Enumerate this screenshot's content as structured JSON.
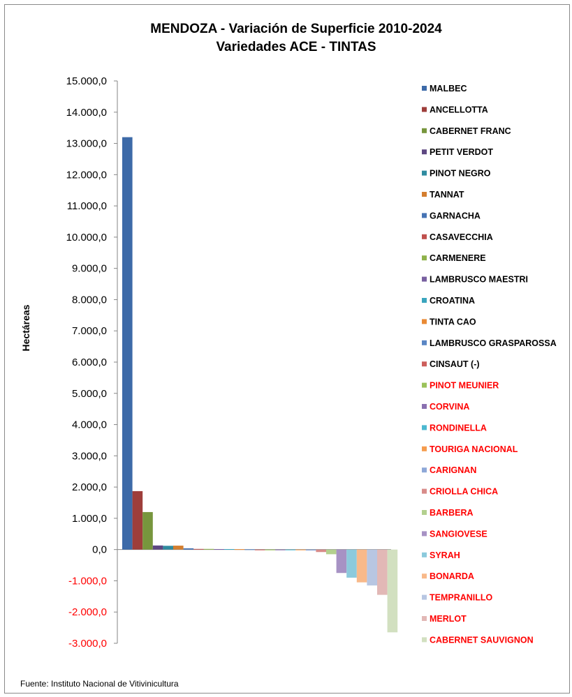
{
  "chart_data": {
    "type": "bar",
    "title": "MENDOZA - Variación de Superficie  2010-2024",
    "subtitle": "Variedades ACE - TINTAS",
    "ylabel": "Hectáreas",
    "xlabel": "",
    "ylim": [
      -3000,
      15000
    ],
    "yticks": [
      15000,
      14000,
      13000,
      12000,
      11000,
      10000,
      9000,
      8000,
      7000,
      6000,
      5000,
      4000,
      3000,
      2000,
      1000,
      0,
      -1000,
      -2000,
      -3000
    ],
    "ytick_labels": [
      "15.000,0",
      "14.000,0",
      "13.000,0",
      "12.000,0",
      "11.000,0",
      "10.000,0",
      "9.000,0",
      "8.000,0",
      "7.000,0",
      "6.000,0",
      "5.000,0",
      "4.000,0",
      "3.000,0",
      "2.000,0",
      "1.000,0",
      "0,0",
      "-1.000,0",
      "-2.000,0",
      "-3.000,0"
    ],
    "negative_tick_color": "#ff0000",
    "grid": false,
    "legend_position": "right",
    "series": [
      {
        "name": "MALBEC",
        "value": 13200,
        "color": "#3d6aa8",
        "label_color": "#000000"
      },
      {
        "name": "ANCELLOTTA",
        "value": 1870,
        "color": "#9e3e3b",
        "label_color": "#000000"
      },
      {
        "name": "CABERNET FRANC",
        "value": 1200,
        "color": "#77963d",
        "label_color": "#000000"
      },
      {
        "name": "PETIT VERDOT",
        "value": 130,
        "color": "#5e4882",
        "label_color": "#000000"
      },
      {
        "name": "PINOT NEGRO",
        "value": 120,
        "color": "#2f8ba0",
        "label_color": "#000000"
      },
      {
        "name": "TANNAT",
        "value": 125,
        "color": "#d47e2f",
        "label_color": "#000000"
      },
      {
        "name": "GARNACHA",
        "value": 40,
        "color": "#4673b4",
        "label_color": "#000000"
      },
      {
        "name": "CASAVECCHIA",
        "value": 20,
        "color": "#c0504d",
        "label_color": "#000000"
      },
      {
        "name": "CARMENERE",
        "value": 20,
        "color": "#8fb24a",
        "label_color": "#000000"
      },
      {
        "name": "LAMBRUSCO MAESTRI",
        "value": 15,
        "color": "#7860a0",
        "label_color": "#000000"
      },
      {
        "name": "CROATINA",
        "value": 15,
        "color": "#3aa5be",
        "label_color": "#000000"
      },
      {
        "name": "TINTA CAO",
        "value": 12,
        "color": "#e98a35",
        "label_color": "#000000"
      },
      {
        "name": "LAMBRUSCO GRASPAROSSA",
        "value": 8,
        "color": "#5a86c4",
        "label_color": "#000000"
      },
      {
        "name": "CINSAUT (-)",
        "value": 0,
        "color": "#cd5f5c",
        "label_color": "#000000"
      },
      {
        "name": "PINOT MEUNIER",
        "value": -5,
        "color": "#9bc25a",
        "label_color": "#ff0000"
      },
      {
        "name": "CORVINA",
        "value": -10,
        "color": "#8a70b0",
        "label_color": "#ff0000"
      },
      {
        "name": "RONDINELLA",
        "value": -15,
        "color": "#4cb8d0",
        "label_color": "#ff0000"
      },
      {
        "name": "TOURIGA NACIONAL",
        "value": -20,
        "color": "#f59c4e",
        "label_color": "#ff0000"
      },
      {
        "name": "CARIGNAN",
        "value": -30,
        "color": "#8ea8d8",
        "label_color": "#ff0000"
      },
      {
        "name": "CRIOLLA CHICA",
        "value": -80,
        "color": "#d88c8a",
        "label_color": "#ff0000"
      },
      {
        "name": "BARBERA",
        "value": -150,
        "color": "#b3d08e",
        "label_color": "#ff0000"
      },
      {
        "name": "SANGIOVESE",
        "value": -750,
        "color": "#a792c4",
        "label_color": "#ff0000"
      },
      {
        "name": "SYRAH",
        "value": -900,
        "color": "#8ccadc",
        "label_color": "#ff0000"
      },
      {
        "name": "BONARDA",
        "value": -1050,
        "color": "#f8b98a",
        "label_color": "#ff0000"
      },
      {
        "name": "TEMPRANILLO",
        "value": -1150,
        "color": "#b8c6e2",
        "label_color": "#ff0000"
      },
      {
        "name": "MERLOT",
        "value": -1450,
        "color": "#e2b8b6",
        "label_color": "#ff0000"
      },
      {
        "name": "CABERNET SAUVIGNON",
        "value": -2650,
        "color": "#d2e0c0",
        "label_color": "#ff0000"
      }
    ],
    "source": "Fuente: Instituto Nacional de Vitivinicultura"
  }
}
